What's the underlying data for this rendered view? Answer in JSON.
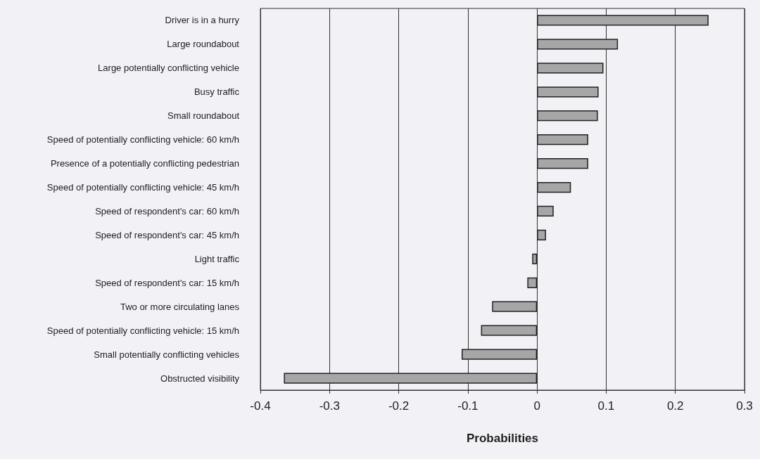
{
  "chart_data": {
    "type": "bar",
    "orientation": "horizontal",
    "xlabel": "Probabilities",
    "categories": [
      "Driver is in a hurry",
      "Large roundabout",
      "Large potentially conflicting vehicle",
      "Busy traffic",
      "Small roundabout",
      "Speed of potentially conflicting vehicle: 60 km/h",
      "Presence of a potentially conflicting pedestrian",
      "Speed of potentially conflicting vehicle: 45 km/h",
      "Speed of respondent's car: 60 km/h",
      "Speed of respondent's car: 45 km/h",
      "Light traffic",
      "Speed of respondent's car: 15 km/h",
      "Two or more circulating lanes",
      "Speed of potentially conflicting vehicle: 15 km/h",
      "Small potentially conflicting vehicles",
      "Obstructed visibility"
    ],
    "values": [
      0.248,
      0.117,
      0.096,
      0.089,
      0.088,
      0.074,
      0.074,
      0.049,
      0.024,
      0.013,
      -0.007,
      -0.014,
      -0.065,
      -0.081,
      -0.109,
      -0.366
    ],
    "color": "#a6a6a6",
    "xlim": [
      -0.4,
      0.3
    ],
    "xticks": [
      -0.4,
      -0.3,
      -0.2,
      -0.1,
      0,
      0.1,
      0.2,
      0.3
    ],
    "grid": "x"
  }
}
